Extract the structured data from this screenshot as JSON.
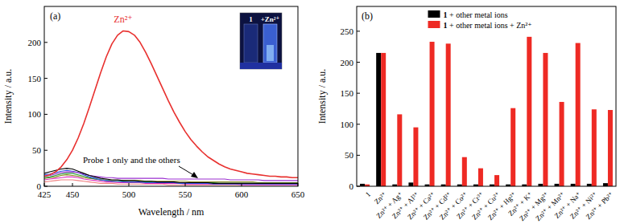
{
  "chart_data": [
    {
      "type": "line",
      "panel_label": "(a)",
      "x_label": "Wavelength / nm",
      "y_label": "Intensity / a.u.",
      "x": [
        425,
        430,
        435,
        440,
        445,
        450,
        455,
        460,
        465,
        470,
        475,
        480,
        485,
        490,
        495,
        500,
        505,
        510,
        515,
        520,
        525,
        530,
        535,
        540,
        545,
        550,
        555,
        560,
        565,
        570,
        575,
        580,
        585,
        590,
        595,
        600,
        605,
        610,
        615,
        620,
        625,
        630,
        635,
        640,
        645,
        650
      ],
      "xlim": [
        425,
        650
      ],
      "xticks": [
        425,
        450,
        500,
        550,
        600,
        650
      ],
      "ylim": [
        0,
        250
      ],
      "yticks": [
        0,
        50,
        100,
        150,
        200
      ],
      "series": [
        {
          "color": "#f08080",
          "values": [
            6,
            7,
            8,
            9,
            9,
            9,
            8,
            7,
            6,
            5,
            4,
            4,
            4,
            3,
            3,
            3,
            3,
            3,
            3,
            3,
            3,
            3,
            2,
            2,
            2,
            2,
            2,
            2,
            2,
            2,
            2,
            2,
            2,
            2,
            2,
            2,
            2,
            2,
            2,
            2,
            2,
            2,
            2,
            2,
            2,
            2
          ]
        },
        {
          "color": "#e030c0",
          "values": [
            9,
            10,
            11,
            12,
            13,
            13,
            12,
            10,
            9,
            8,
            7,
            6,
            6,
            5,
            5,
            5,
            5,
            5,
            4,
            4,
            4,
            4,
            4,
            4,
            4,
            3,
            3,
            3,
            3,
            3,
            3,
            3,
            3,
            3,
            3,
            2,
            2,
            2,
            2,
            2,
            2,
            2,
            2,
            2,
            2,
            2
          ]
        },
        {
          "color": "#8a8a20",
          "values": [
            11,
            12,
            13,
            15,
            16,
            15,
            14,
            12,
            11,
            10,
            9,
            9,
            8,
            8,
            8,
            8,
            8,
            8,
            7,
            7,
            7,
            7,
            7,
            7,
            7,
            7,
            6,
            6,
            6,
            6,
            6,
            6,
            6,
            6,
            6,
            6,
            6,
            6,
            5,
            5,
            5,
            5,
            5,
            5,
            5,
            5
          ]
        },
        {
          "color": "#2a9a3a",
          "values": [
            12,
            13,
            15,
            17,
            18,
            18,
            16,
            14,
            12,
            10,
            9,
            8,
            7,
            7,
            7,
            6,
            6,
            6,
            6,
            6,
            5,
            5,
            5,
            5,
            5,
            5,
            5,
            5,
            5,
            5,
            5,
            4,
            4,
            4,
            4,
            4,
            4,
            4,
            4,
            4,
            4,
            4,
            4,
            4,
            4,
            4
          ]
        },
        {
          "color": "#3050e0",
          "values": [
            16,
            17,
            19,
            21,
            22,
            21,
            19,
            16,
            13,
            11,
            9,
            8,
            7,
            7,
            6,
            6,
            6,
            6,
            5,
            5,
            5,
            5,
            5,
            5,
            4,
            4,
            4,
            4,
            4,
            4,
            3,
            3,
            3,
            3,
            3,
            3,
            3,
            3,
            3,
            3,
            3,
            3,
            3,
            3,
            3,
            3
          ]
        },
        {
          "color": "#9b30d0",
          "values": [
            14,
            15,
            17,
            19,
            20,
            20,
            19,
            17,
            15,
            14,
            13,
            12,
            12,
            11,
            11,
            11,
            11,
            11,
            11,
            11,
            11,
            11,
            10,
            10,
            10,
            10,
            10,
            10,
            10,
            10,
            10,
            10,
            10,
            9,
            9,
            9,
            9,
            9,
            9,
            8,
            8,
            8,
            8,
            8,
            8,
            8
          ]
        },
        {
          "color": "#000000",
          "values": [
            18,
            20,
            22,
            24,
            25,
            24,
            21,
            18,
            15,
            13,
            11,
            10,
            9,
            9,
            8,
            8,
            8,
            7,
            7,
            7,
            6,
            6,
            6,
            6,
            5,
            5,
            5,
            5,
            5,
            5,
            4,
            4,
            4,
            4,
            4,
            4,
            4,
            4,
            4,
            4,
            4,
            4,
            4,
            4,
            4,
            4
          ]
        },
        {
          "name": "Zn²⁺",
          "color": "#e8312f",
          "values": [
            14,
            16,
            20,
            27,
            37,
            50,
            67,
            87,
            110,
            134,
            158,
            180,
            198,
            210,
            216,
            215,
            210,
            200,
            186,
            170,
            153,
            136,
            119,
            103,
            89,
            76,
            65,
            56,
            48,
            41,
            36,
            31,
            27,
            24,
            22,
            20,
            18,
            17,
            16,
            15,
            14,
            14,
            13,
            13,
            12,
            12
          ]
        }
      ],
      "annotations": [
        {
          "text": "Probe 1 only and the others"
        }
      ],
      "inset": {
        "labels": [
          "1",
          "+Zn²⁺"
        ]
      }
    },
    {
      "type": "bar",
      "panel_label": "(b)",
      "y_label": "Intensity / a.u.",
      "categories": [
        "1",
        "Zn²⁺",
        "Zn²⁺ + Ag⁺",
        "Zn²⁺ + Al³⁺",
        "Zn²⁺ + Ca²⁺",
        "Zn²⁺ + Cd²⁺",
        "Zn²⁺ + Co²⁺",
        "Zn²⁺ + Cr³⁺",
        "Zn²⁺ + Cu²⁺",
        "Zn²⁺ + Hg²⁺",
        "Zn²⁺ + K⁺",
        "Zn²⁺ + Mg²⁺",
        "Zn²⁺ + Mn²⁺",
        "Zn²⁺ + Na⁺",
        "Zn²⁺ + Ni²⁺",
        "Zn²⁺ + Pb²⁺"
      ],
      "series": [
        {
          "name": "1 + other metal ions",
          "color": "#000000",
          "values": [
            4,
            215,
            3,
            6,
            3,
            3,
            3,
            3,
            3,
            3,
            3,
            4,
            4,
            4,
            4,
            5
          ]
        },
        {
          "name": "1 + other metal ions + Zn²⁺",
          "color": "#ee2a24",
          "values": [
            3,
            215,
            116,
            95,
            233,
            230,
            47,
            29,
            18,
            126,
            241,
            215,
            136,
            231,
            124,
            123
          ]
        }
      ],
      "ylim": [
        0,
        290
      ],
      "yticks": [
        0,
        50,
        100,
        150,
        200,
        250
      ],
      "legend": "upper center"
    }
  ]
}
